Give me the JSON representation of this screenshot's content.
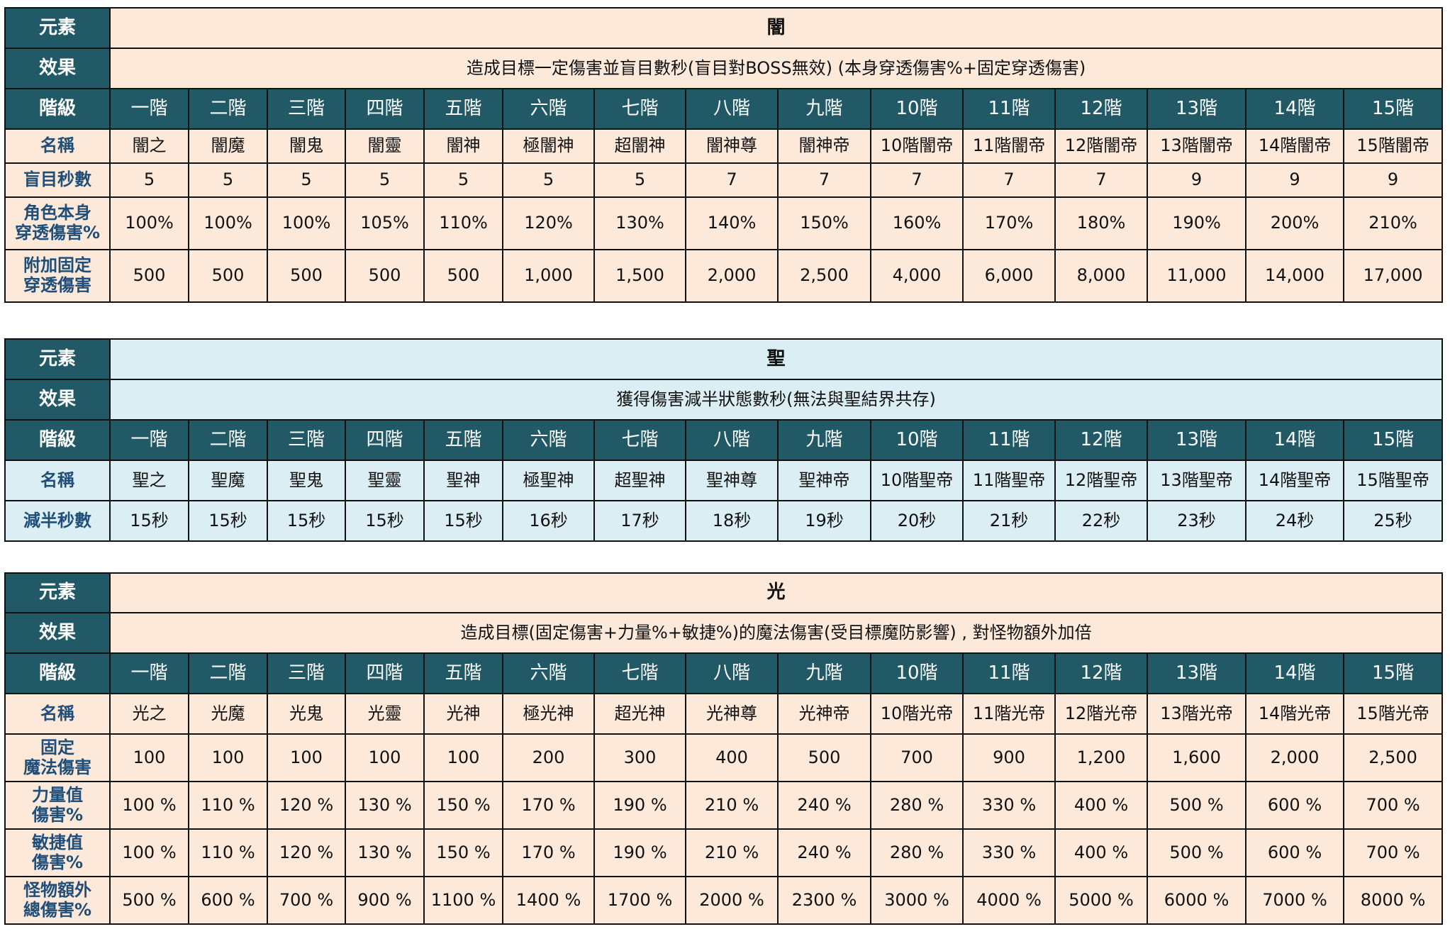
{
  "tiers": [
    "一階",
    "二階",
    "三階",
    "四階",
    "五階",
    "六階",
    "七階",
    "八階",
    "九階",
    "10階",
    "11階",
    "12階",
    "13階",
    "14階",
    "15階"
  ],
  "labels": {
    "element": "元素",
    "effect": "效果",
    "tier": "階級",
    "name": "名稱"
  },
  "colors": {
    "header_bg": "#215967",
    "peach": "#fde9d9",
    "light_blue": "#daeef3",
    "label_text": "#1f4e79"
  },
  "tables": [
    {
      "element": "闇",
      "effect": "造成目標一定傷害並盲目數秒(盲目對BOSS無效)  (本身穿透傷害%+固定穿透傷害)",
      "names": [
        "闇之",
        "闇魔",
        "闇鬼",
        "闇靈",
        "闇神",
        "極闇神",
        "超闇神",
        "闇神尊",
        "闇神帝",
        "10階闇帝",
        "11階闇帝",
        "12階闇帝",
        "13階闇帝",
        "14階闇帝",
        "15階闇帝"
      ],
      "rows": [
        {
          "label": "盲目秒數",
          "values": [
            "5",
            "5",
            "5",
            "5",
            "5",
            "5",
            "5",
            "7",
            "7",
            "7",
            "7",
            "7",
            "9",
            "9",
            "9"
          ]
        },
        {
          "label": "角色本身 穿透傷害%",
          "values": [
            "100%",
            "100%",
            "100%",
            "105%",
            "110%",
            "120%",
            "130%",
            "140%",
            "150%",
            "160%",
            "170%",
            "180%",
            "190%",
            "200%",
            "210%"
          ]
        },
        {
          "label": "附加固定 穿透傷害",
          "values": [
            "500",
            "500",
            "500",
            "500",
            "500",
            "1,000",
            "1,500",
            "2,000",
            "2,500",
            "4,000",
            "6,000",
            "8,000",
            "11,000",
            "14,000",
            "17,000"
          ]
        }
      ]
    },
    {
      "element": "聖",
      "effect": "獲得傷害減半狀態數秒(無法與聖結界共存)",
      "names": [
        "聖之",
        "聖魔",
        "聖鬼",
        "聖靈",
        "聖神",
        "極聖神",
        "超聖神",
        "聖神尊",
        "聖神帝",
        "10階聖帝",
        "11階聖帝",
        "12階聖帝",
        "13階聖帝",
        "14階聖帝",
        "15階聖帝"
      ],
      "rows": [
        {
          "label": "減半秒數",
          "values": [
            "15秒",
            "15秒",
            "15秒",
            "15秒",
            "15秒",
            "16秒",
            "17秒",
            "18秒",
            "19秒",
            "20秒",
            "21秒",
            "22秒",
            "23秒",
            "24秒",
            "25秒"
          ]
        }
      ]
    },
    {
      "element": "光",
      "effect": "造成目標(固定傷害+力量%+敏捷%)的魔法傷害(受目標魔防影響) , 對怪物額外加倍",
      "names": [
        "光之",
        "光魔",
        "光鬼",
        "光靈",
        "光神",
        "極光神",
        "超光神",
        "光神尊",
        "光神帝",
        "10階光帝",
        "11階光帝",
        "12階光帝",
        "13階光帝",
        "14階光帝",
        "15階光帝"
      ],
      "rows": [
        {
          "label": "固定 魔法傷害",
          "values": [
            "100",
            "100",
            "100",
            "100",
            "100",
            "200",
            "300",
            "400",
            "500",
            "700",
            "900",
            "1,200",
            "1,600",
            "2,000",
            "2,500"
          ]
        },
        {
          "label": "力量值 傷害%",
          "values": [
            "100 %",
            "110 %",
            "120 %",
            "130 %",
            "150 %",
            "170 %",
            "190 %",
            "210 %",
            "240 %",
            "280 %",
            "330 %",
            "400 %",
            "500 %",
            "600 %",
            "700 %"
          ]
        },
        {
          "label": "敏捷值 傷害%",
          "values": [
            "100 %",
            "110 %",
            "120 %",
            "130 %",
            "150 %",
            "170 %",
            "190 %",
            "210 %",
            "240 %",
            "280 %",
            "330 %",
            "400 %",
            "500 %",
            "600 %",
            "700 %"
          ]
        },
        {
          "label": "怪物額外 總傷害%",
          "values": [
            "500 %",
            "600 %",
            "700 %",
            "900 %",
            "1100 %",
            "1400 %",
            "1700 %",
            "2000 %",
            "2300 %",
            "3000 %",
            "4000 %",
            "5000 %",
            "6000 %",
            "7000 %",
            "8000 %"
          ]
        }
      ]
    }
  ]
}
